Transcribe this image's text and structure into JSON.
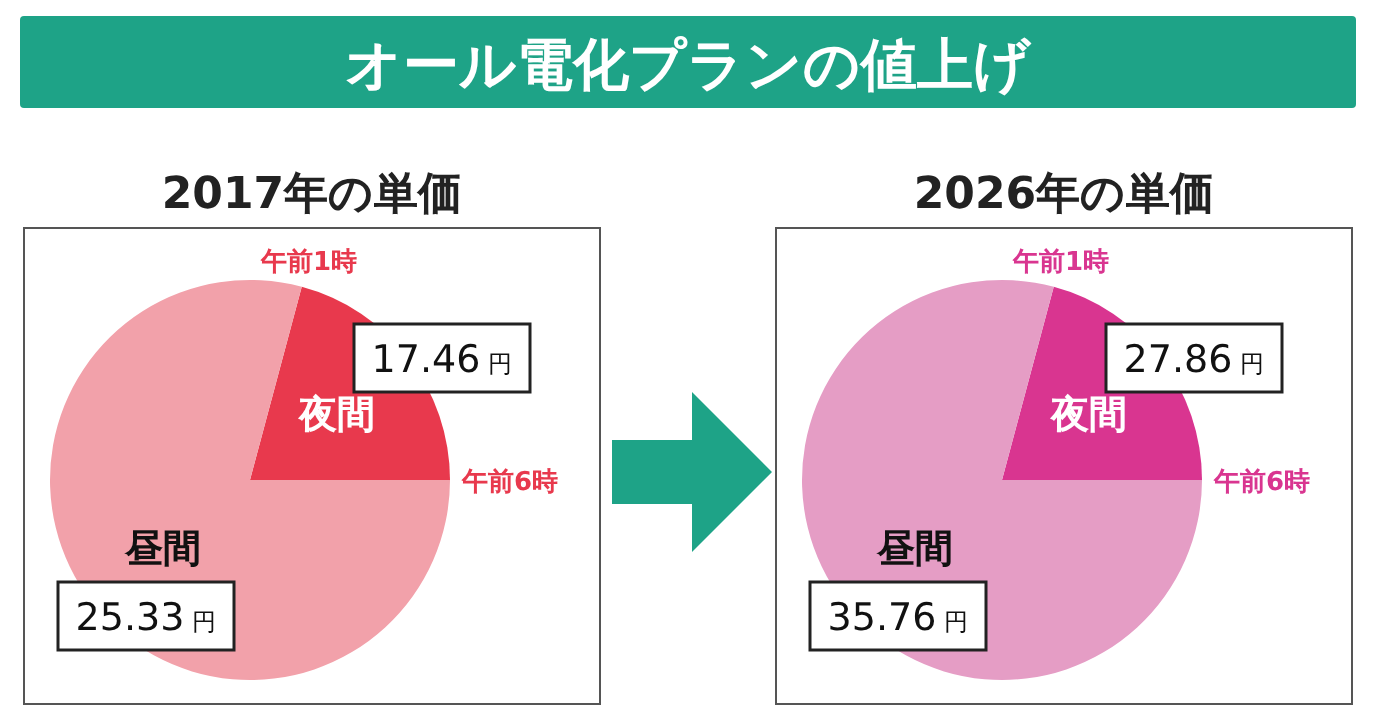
{
  "chart_data": [
    {
      "type": "pie",
      "title": "オール電化プランの値上げ",
      "subtitle": "2017年の単価",
      "categories": [
        "夜間",
        "昼間"
      ],
      "values": [
        20.83,
        79.17
      ],
      "colors": [
        "#e8394d",
        "#f2a1aa"
      ],
      "annotations": [
        "午前1時",
        "午前6時",
        "17.46 円",
        "25.33 円"
      ]
    },
    {
      "type": "pie",
      "subtitle": "2026年の単価",
      "categories": [
        "夜間",
        "昼間"
      ],
      "values": [
        20.83,
        79.17
      ],
      "colors": [
        "#d93590",
        "#e59dc5"
      ],
      "annotations": [
        "午前1時",
        "午前6時",
        "27.86 円",
        "35.76 円"
      ]
    }
  ]
}
